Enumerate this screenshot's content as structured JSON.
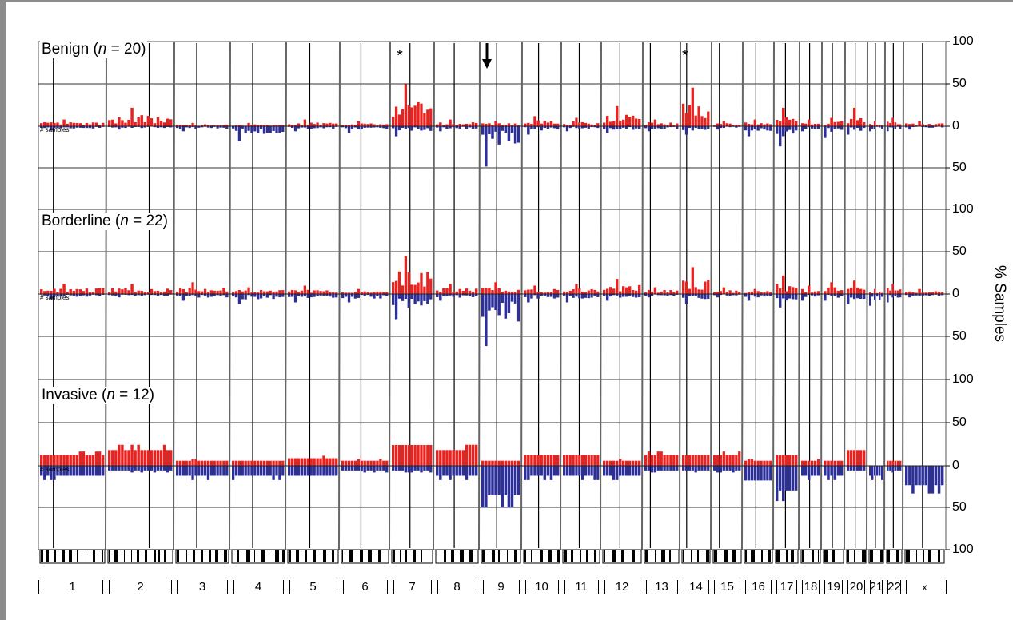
{
  "chart_data": {
    "type": "bar",
    "ylabel": "% Samples",
    "ytick_labels": [
      "100",
      "50",
      "0",
      "50",
      "100"
    ],
    "gain_color": "#e8221f",
    "loss_color": "#2b2f96",
    "grid": true,
    "annotations": {
      "asterisk": "*",
      "arrow_chromosome": "9"
    },
    "chromosomes": [
      "1",
      "2",
      "3",
      "4",
      "5",
      "6",
      "7",
      "8",
      "9",
      "10",
      "11",
      "12",
      "13",
      "14",
      "15",
      "16",
      "17",
      "18",
      "19",
      "20",
      "21",
      "22",
      "x"
    ],
    "panels": [
      {
        "label": "Benign",
        "n_label": "n",
        "n_value": "= 20)",
        "y_axis_tag": "# samples",
        "gain": [
          8,
          22,
          4,
          4,
          8,
          6,
          50,
          8,
          6,
          12,
          10,
          24,
          8,
          46,
          6,
          8,
          22,
          8,
          10,
          22,
          6,
          10,
          6
        ],
        "loss": [
          5,
          4,
          6,
          18,
          6,
          8,
          12,
          6,
          48,
          10,
          6,
          8,
          6,
          10,
          4,
          12,
          24,
          6,
          14,
          10,
          6,
          6,
          4
        ]
      },
      {
        "label": "Borderline",
        "n_label": "n",
        "n_value": "= 22)",
        "y_axis_tag": "# samples",
        "gain": [
          12,
          12,
          14,
          8,
          10,
          6,
          45,
          12,
          14,
          10,
          12,
          18,
          8,
          32,
          8,
          6,
          22,
          10,
          14,
          16,
          6,
          12,
          6
        ],
        "loss": [
          6,
          4,
          8,
          12,
          10,
          10,
          30,
          8,
          62,
          10,
          10,
          8,
          4,
          12,
          4,
          8,
          16,
          8,
          8,
          12,
          14,
          10,
          4
        ]
      },
      {
        "label": "Invasive",
        "n_label": "n",
        "n_value": "= 12)",
        "y_axis_tag": "# samples",
        "gain": [
          17,
          25,
          8,
          8,
          12,
          8,
          33,
          25,
          8,
          17,
          17,
          8,
          17,
          17,
          17,
          8,
          17,
          8,
          8,
          25,
          0,
          8,
          0
        ],
        "loss": [
          17,
          8,
          17,
          17,
          17,
          8,
          8,
          17,
          50,
          17,
          17,
          17,
          8,
          8,
          8,
          25,
          42,
          17,
          17,
          8,
          17,
          8,
          33
        ]
      }
    ]
  }
}
